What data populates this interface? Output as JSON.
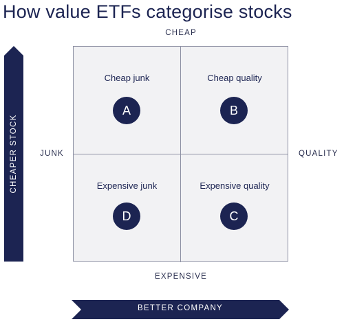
{
  "title": "How value ETFs categorise stocks",
  "axes": {
    "top": "CHEAP",
    "bottom": "EXPENSIVE",
    "left": "JUNK",
    "right": "QUALITY",
    "vertical_arrow": "CHEAPER STOCK",
    "horizontal_arrow": "BETTER COMPANY"
  },
  "quadrants": [
    {
      "position": "top-left",
      "label": "Cheap junk",
      "badge": "A"
    },
    {
      "position": "top-right",
      "label": "Cheap quality",
      "badge": "B"
    },
    {
      "position": "bottom-left",
      "label": "Expensive junk",
      "badge": "D"
    },
    {
      "position": "bottom-right",
      "label": "Expensive quality",
      "badge": "C"
    }
  ],
  "colors": {
    "navy": "#1c2452",
    "grid_fill": "#f2f2f4",
    "grid_line": "#8d90a3"
  }
}
